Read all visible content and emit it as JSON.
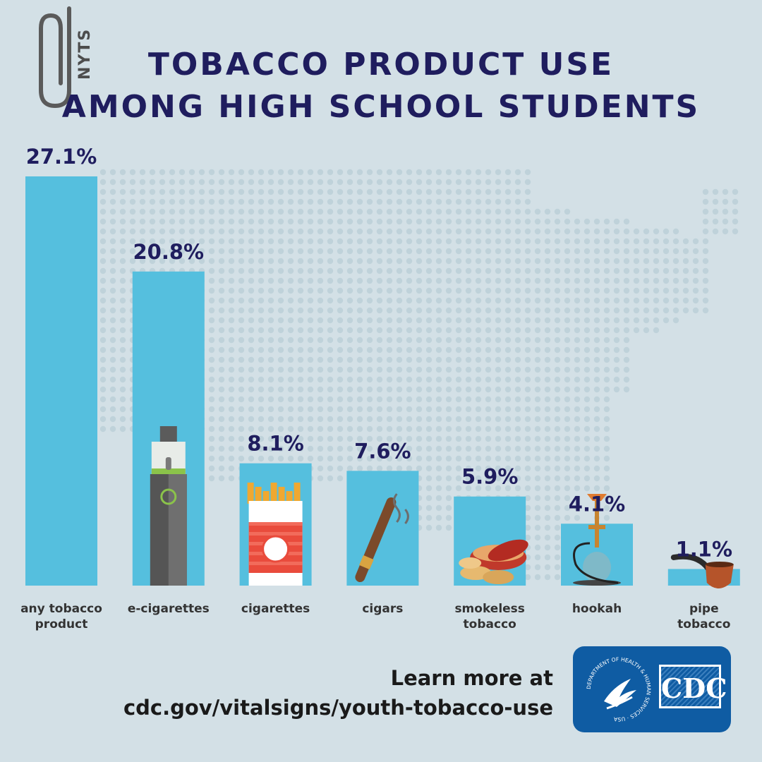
{
  "header": {
    "badge": "NYTS",
    "title_line1": "TOBACCO PRODUCT USE",
    "title_line2": "AMONG HIGH SCHOOL STUDENTS"
  },
  "footer": {
    "learn_more": "Learn more at",
    "url": "cdc.gov/vitalsigns/youth-tobacco-use",
    "logo_text": "CDC",
    "seal_text": "DEPARTMENT OF HEALTH & HUMAN SERVICES · USA"
  },
  "colors": {
    "background": "#d3e0e6",
    "bar": "#55bfde",
    "title": "#1f1d5e",
    "value_label": "#1f1d5e",
    "logo": "#0f5ca3"
  },
  "chart_data": {
    "type": "bar",
    "title": "TOBACCO PRODUCT USE AMONG HIGH SCHOOL STUDENTS",
    "categories": [
      [
        "any tobacco",
        "product"
      ],
      [
        "e-cigarettes"
      ],
      [
        "cigarettes"
      ],
      [
        "cigars"
      ],
      [
        "smokeless",
        "tobacco"
      ],
      [
        "hookah"
      ],
      [
        "pipe",
        "tobacco"
      ]
    ],
    "values": [
      27.1,
      20.8,
      8.1,
      7.6,
      5.9,
      4.1,
      1.1
    ],
    "value_labels": [
      "27.1%",
      "20.8%",
      "8.1%",
      "7.6%",
      "5.9%",
      "4.1%",
      "1.1%"
    ],
    "icons": [
      "none",
      "vape-pen-icon",
      "cigarette-pack-icon",
      "cigar-icon",
      "snuff-tin-icon",
      "hookah-icon",
      "pipe-icon"
    ],
    "ylim": [
      0,
      27.1
    ],
    "grid": false,
    "xlabel": "",
    "ylabel": ""
  }
}
